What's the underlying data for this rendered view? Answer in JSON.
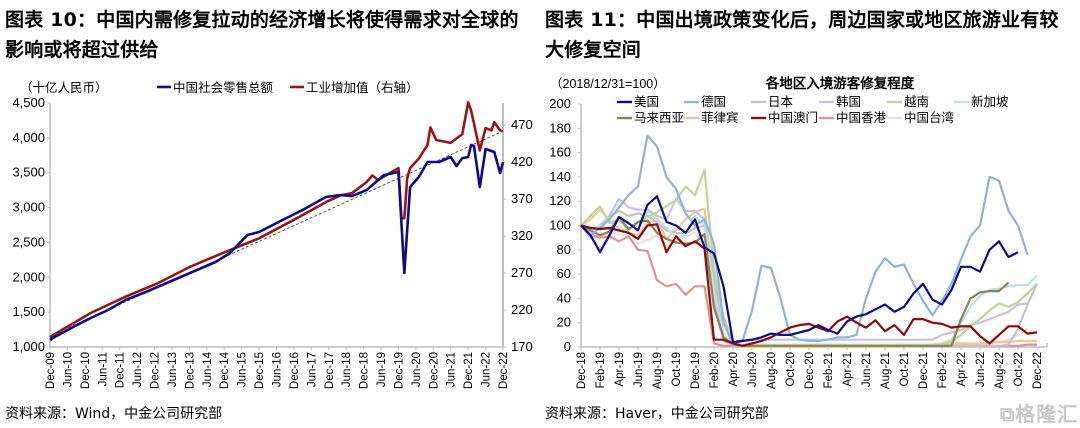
{
  "figure10": {
    "title": "图表 10：中国内需修复拉动的经济增长将使得需求对全球的影响或将超过供给",
    "source": "资料来源：Wind，中金公司研究部"
  },
  "figure11": {
    "title": "图表 11：中国出境政策变化后，周边国家或地区旅游业有较大修复空间",
    "source": "资料来源：Haver，中金公司研究部"
  },
  "watermark": "格隆汇",
  "chart_data": [
    {
      "type": "line",
      "title": "",
      "units_label": "（十亿人民币）",
      "legend_placement": "top",
      "grid": false,
      "x_ticks": [
        "Dec-09",
        "Jun-10",
        "Dec-10",
        "Jun-11",
        "Dec-11",
        "Jun-12",
        "Dec-12",
        "Jun-13",
        "Dec-13",
        "Jun-14",
        "Dec-14",
        "Jun-15",
        "Dec-15",
        "Jun-16",
        "Dec-16",
        "Jun-17",
        "Dec-17",
        "Jun-18",
        "Dec-18",
        "Jun-19",
        "Dec-19",
        "Jun-20",
        "Dec-20",
        "Jun-21",
        "Dec-21",
        "Jun-22",
        "Dec-22"
      ],
      "x_range": [
        "2009-12",
        "2022-12"
      ],
      "y_left": {
        "range": [
          1000,
          4500
        ],
        "ticks": [
          1000,
          1500,
          2000,
          2500,
          3000,
          3500,
          4000,
          4500
        ]
      },
      "y_right": {
        "range": [
          170,
          500
        ],
        "ticks": [
          170,
          220,
          270,
          320,
          370,
          420,
          470
        ]
      },
      "series": [
        {
          "name": "中国社会零售总额",
          "axis": "left",
          "color": "#0b0b8c",
          "points": [
            [
              "2009-12",
              1100
            ],
            [
              "2010-01",
              1129
            ],
            [
              "2010-08",
              1287
            ],
            [
              "2011-02",
              1416
            ],
            [
              "2011-08",
              1531
            ],
            [
              "2012-02",
              1674
            ],
            [
              "2012-09",
              1789
            ],
            [
              "2013-09",
              2004
            ],
            [
              "2014-09",
              2219
            ],
            [
              "2015-02",
              2348
            ],
            [
              "2015-08",
              2606
            ],
            [
              "2015-12",
              2649
            ],
            [
              "2016-08",
              2821
            ],
            [
              "2017-03",
              2965
            ],
            [
              "2017-11",
              3151
            ],
            [
              "2018-04",
              3180
            ],
            [
              "2018-08",
              3165
            ],
            [
              "2019-01",
              3251
            ],
            [
              "2019-07",
              3466
            ],
            [
              "2019-12",
              3510
            ],
            [
              "2020-02",
              2061
            ],
            [
              "2020-04",
              3294
            ],
            [
              "2020-07",
              3438
            ],
            [
              "2020-10",
              3653
            ],
            [
              "2021-02",
              3653
            ],
            [
              "2021-06",
              3725
            ],
            [
              "2021-08",
              3596
            ],
            [
              "2021-10",
              3710
            ],
            [
              "2021-12",
              3725
            ],
            [
              "2022-01",
              3897
            ],
            [
              "2022-02",
              3880
            ],
            [
              "2022-04",
              3294
            ],
            [
              "2022-06",
              3840
            ],
            [
              "2022-09",
              3797
            ],
            [
              "2022-11",
              3495
            ],
            [
              "2022-12",
              3653
            ]
          ]
        },
        {
          "name": "工业增加值（右轴）",
          "axis": "right",
          "color": "#9b1414",
          "points": [
            [
              "2009-12",
              183
            ],
            [
              "2010-01",
              186
            ],
            [
              "2011-02",
              216
            ],
            [
              "2012-02",
              238
            ],
            [
              "2013-01",
              256
            ],
            [
              "2013-12",
              278
            ],
            [
              "2014-12",
              298
            ],
            [
              "2015-12",
              317
            ],
            [
              "2016-12",
              342
            ],
            [
              "2017-11",
              366
            ],
            [
              "2018-04",
              375
            ],
            [
              "2018-08",
              378
            ],
            [
              "2019-01",
              393
            ],
            [
              "2019-03",
              402
            ],
            [
              "2019-05",
              396
            ],
            [
              "2019-12",
              412
            ],
            [
              "2020-01",
              344
            ],
            [
              "2020-02",
              344
            ],
            [
              "2020-03",
              398
            ],
            [
              "2020-04",
              412
            ],
            [
              "2020-07",
              425
            ],
            [
              "2020-10",
              443
            ],
            [
              "2020-11",
              467
            ],
            [
              "2021-01",
              450
            ],
            [
              "2021-06",
              446
            ],
            [
              "2021-10",
              458
            ],
            [
              "2021-12",
              501
            ],
            [
              "2022-01",
              490
            ],
            [
              "2022-04",
              436
            ],
            [
              "2022-06",
              466
            ],
            [
              "2022-08",
              463
            ],
            [
              "2022-09",
              474
            ],
            [
              "2022-11",
              463
            ],
            [
              "2022-12",
              462
            ]
          ]
        }
      ],
      "trendline": {
        "axis": "right",
        "style": "dashed",
        "color": "#555555",
        "points": [
          [
            "2009-12",
            185
          ],
          [
            "2022-12",
            462
          ]
        ]
      }
    },
    {
      "type": "line",
      "title": "各地区入境游客修复程度",
      "units_label": "（2018/12/31=100）",
      "legend_placement": "top",
      "grid": false,
      "x_ticks": [
        "Dec-18",
        "Feb-19",
        "Apr-19",
        "Jun-19",
        "Aug-19",
        "Oct-19",
        "Dec-19",
        "Feb-20",
        "Apr-20",
        "Jun-20",
        "Aug-20",
        "Oct-20",
        "Dec-20",
        "Feb-21",
        "Apr-21",
        "Jun-21",
        "Aug-21",
        "Oct-21",
        "Dec-21",
        "Feb-22",
        "Apr-22",
        "Jun-22",
        "Aug-22",
        "Oct-22",
        "Dec-22"
      ],
      "x": [
        "2018-12",
        "2019-01",
        "2019-02",
        "2019-03",
        "2019-04",
        "2019-05",
        "2019-06",
        "2019-07",
        "2019-08",
        "2019-09",
        "2019-10",
        "2019-11",
        "2019-12",
        "2020-01",
        "2020-02",
        "2020-03",
        "2020-04",
        "2020-05",
        "2020-06",
        "2020-07",
        "2020-08",
        "2020-09",
        "2020-10",
        "2020-11",
        "2020-12",
        "2021-01",
        "2021-02",
        "2021-03",
        "2021-04",
        "2021-05",
        "2021-06",
        "2021-07",
        "2021-08",
        "2021-09",
        "2021-10",
        "2021-11",
        "2021-12",
        "2022-01",
        "2022-02",
        "2022-03",
        "2022-04",
        "2022-05",
        "2022-06",
        "2022-07",
        "2022-08",
        "2022-09",
        "2022-10",
        "2022-11",
        "2022-12"
      ],
      "y": {
        "range": [
          0,
          200
        ],
        "ticks": [
          0,
          20,
          40,
          60,
          80,
          100,
          120,
          140,
          160,
          180,
          200
        ]
      },
      "series": [
        {
          "name": "美国",
          "color": "#0a0a8a",
          "values": [
            100,
            92,
            78,
            92,
            107,
            102,
            96,
            117,
            124,
            103,
            100,
            94,
            105,
            82,
            77,
            50,
            4,
            5,
            6,
            8,
            11,
            10,
            10,
            12,
            14,
            18,
            14,
            11,
            21,
            25,
            27,
            31,
            35,
            29,
            33,
            44,
            52,
            39,
            35,
            47,
            66,
            66,
            62,
            80,
            87,
            74,
            78,
            null,
            null
          ]
        },
        {
          "name": "德国",
          "color": "#8fb1dd",
          "values": [
            100,
            92,
            98,
            105,
            115,
            125,
            132,
            174,
            165,
            140,
            130,
            110,
            100,
            105,
            85,
            20,
            2,
            5,
            30,
            67,
            65,
            40,
            10,
            6,
            5,
            5,
            6,
            8,
            8,
            10,
            40,
            62,
            73,
            66,
            68,
            52,
            38,
            26,
            38,
            52,
            72,
            91,
            100,
            140,
            137,
            112,
            100,
            76,
            null
          ]
        },
        {
          "name": "日本",
          "color": "#c3c3c3",
          "values": [
            100,
            96,
            100,
            107,
            112,
            108,
            110,
            108,
            102,
            96,
            94,
            93,
            98,
            100,
            60,
            10,
            0,
            1,
            1,
            1,
            1,
            1,
            1,
            1,
            1,
            1,
            1,
            1,
            1,
            1,
            1,
            1,
            1,
            1,
            1,
            1,
            1,
            1,
            1,
            1,
            1,
            1,
            1,
            1,
            1,
            2,
            15,
            35,
            52
          ]
        },
        {
          "name": "韩国",
          "color": "#cdbfe2",
          "values": [
            100,
            90,
            100,
            108,
            122,
            115,
            113,
            113,
            108,
            105,
            122,
            112,
            112,
            105,
            40,
            5,
            2,
            5,
            6,
            6,
            6,
            6,
            6,
            6,
            6,
            6,
            6,
            6,
            6,
            6,
            6,
            6,
            6,
            6,
            6,
            6,
            6,
            6,
            10,
            12,
            14,
            18,
            20,
            23,
            26,
            29,
            35,
            36,
            null
          ]
        },
        {
          "name": "越南",
          "color": "#bad793",
          "values": [
            100,
            108,
            116,
            102,
            105,
            96,
            103,
            107,
            111,
            116,
            121,
            132,
            125,
            146,
            64,
            25,
            3,
            1,
            1,
            1,
            1,
            1,
            1,
            1,
            1,
            1,
            1,
            1,
            1,
            1,
            1,
            1,
            1,
            1,
            1,
            1,
            1,
            1,
            2,
            4,
            10,
            17,
            23,
            30,
            36,
            33,
            37,
            44,
            52
          ]
        },
        {
          "name": "新加坡",
          "color": "#b6e2eb",
          "values": [
            100,
            96,
            100,
            97,
            96,
            98,
            102,
            112,
            105,
            98,
            90,
            92,
            108,
            100,
            45,
            10,
            2,
            2,
            2,
            2,
            2,
            2,
            2,
            2,
            2,
            2,
            2,
            2,
            2,
            2,
            2,
            2,
            2,
            2,
            2,
            2,
            2,
            1,
            3,
            6,
            20,
            33,
            42,
            47,
            48,
            50,
            51,
            51,
            59
          ]
        },
        {
          "name": "马来西亚",
          "color": "#8c8450",
          "values": [
            100,
            96,
            92,
            95,
            107,
            97,
            103,
            104,
            94,
            89,
            86,
            85,
            86,
            93,
            33,
            8,
            2,
            1,
            1,
            1,
            1,
            1,
            1,
            1,
            1,
            1,
            1,
            1,
            1,
            1,
            1,
            1,
            1,
            1,
            1,
            1,
            1,
            1,
            1,
            1,
            23,
            40,
            45,
            46,
            46,
            53,
            null,
            null,
            null
          ]
        },
        {
          "name": "菲律宾",
          "color": "#f8c49a",
          "values": [
            100,
            105,
            113,
            104,
            97,
            94,
            92,
            102,
            104,
            89,
            96,
            105,
            111,
            114,
            50,
            8,
            1,
            0,
            0,
            0,
            0,
            0,
            0,
            0,
            0,
            0,
            0,
            0,
            0,
            0,
            0,
            0,
            0,
            0,
            0,
            1,
            2,
            2,
            3,
            3,
            3,
            3,
            3,
            4,
            4,
            4,
            5,
            5,
            5
          ]
        },
        {
          "name": "中国澳门",
          "color": "#8b0a0a",
          "values": [
            100,
            98,
            97,
            98,
            96,
            94,
            89,
            100,
            101,
            78,
            91,
            83,
            87,
            81,
            6,
            6,
            3,
            1,
            3,
            5,
            8,
            12,
            16,
            18,
            19,
            16,
            13,
            21,
            25,
            20,
            16,
            22,
            13,
            18,
            10,
            23,
            23,
            20,
            19,
            16,
            17,
            17,
            9,
            3,
            10,
            17,
            17,
            11,
            12
          ]
        },
        {
          "name": "中国香港",
          "color": "#e0928e",
          "values": [
            100,
            92,
            90,
            91,
            87,
            91,
            80,
            79,
            55,
            50,
            52,
            43,
            50,
            50,
            3,
            1,
            1,
            1,
            1,
            1,
            1,
            1,
            1,
            1,
            1,
            1,
            1,
            1,
            1,
            1,
            1,
            1,
            1,
            1,
            1,
            1,
            1,
            1,
            1,
            1,
            1,
            1,
            1,
            1,
            1,
            1,
            1,
            2,
            2
          ]
        },
        {
          "name": "中国台湾",
          "color": "#f4dcdc",
          "values": [
            100,
            95,
            90,
            95,
            92,
            90,
            85,
            88,
            92,
            82,
            88,
            90,
            95,
            80,
            30,
            5,
            1,
            1,
            1,
            1,
            1,
            1,
            1,
            1,
            1,
            1,
            1,
            1,
            1,
            1,
            1,
            1,
            1,
            1,
            1,
            1,
            1,
            1,
            1,
            1,
            1,
            1,
            2,
            3,
            4,
            6,
            10,
            15,
            null
          ]
        }
      ]
    }
  ]
}
